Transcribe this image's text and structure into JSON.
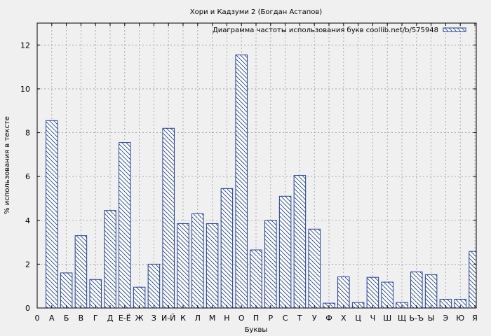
{
  "chart_data": {
    "type": "bar",
    "title": "Хори и Кадзуми 2 (Богдан Астапов)",
    "xlabel": "Буквы",
    "ylabel": "% использования в тексте",
    "legend": {
      "label": "Диаграмма частоты использования букв coollib.net/b/575948",
      "position": "top-right"
    },
    "ylim": [
      0,
      13
    ],
    "yticks": [
      0,
      2,
      4,
      6,
      8,
      10,
      12
    ],
    "grid": true,
    "x_start_label": "0",
    "categories": [
      "А",
      "Б",
      "В",
      "Г",
      "Д",
      "Е-Ё",
      "Ж",
      "З",
      "И-Й",
      "К",
      "Л",
      "М",
      "Н",
      "О",
      "П",
      "Р",
      "С",
      "Т",
      "У",
      "Ф",
      "Х",
      "Ц",
      "Ч",
      "Ш",
      "Щ",
      "Ь-Ъ",
      "Ы",
      "Э",
      "Ю",
      "Я"
    ],
    "values": [
      8.55,
      1.6,
      3.3,
      1.3,
      4.45,
      7.55,
      0.95,
      2.0,
      8.2,
      3.85,
      4.3,
      3.85,
      5.45,
      11.55,
      2.65,
      4.0,
      5.1,
      6.05,
      3.6,
      0.22,
      1.42,
      0.25,
      1.4,
      1.18,
      0.25,
      1.65,
      1.52,
      0.4,
      0.4,
      2.58
    ],
    "colors": {
      "bar_stroke": "#1f3f99",
      "hatch": "#1f3f99",
      "bar_fill": "#ffffff",
      "plot_bg": "#f0f0f0",
      "grid": "#999999"
    }
  }
}
